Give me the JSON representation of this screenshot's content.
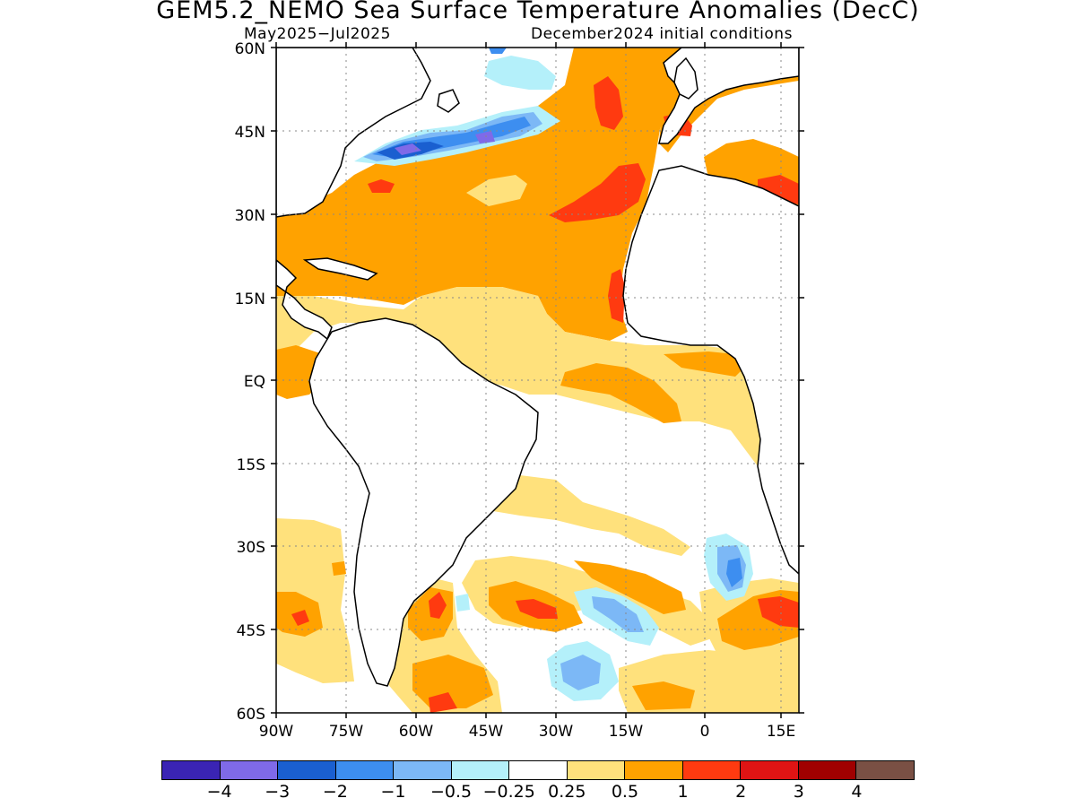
{
  "title": "GEM5.2_NEMO Sea Surface Temperature Anomalies (DecC)",
  "subtitle_left": "May2025−Jul2025",
  "subtitle_right": "December2024 initial conditions",
  "axes": {
    "lat_labels": [
      "60N",
      "45N",
      "30N",
      "15N",
      "EQ",
      "15S",
      "30S",
      "45S",
      "60S"
    ],
    "lon_labels": [
      "90W",
      "75W",
      "60W",
      "45W",
      "30W",
      "15W",
      "0",
      "15E"
    ]
  },
  "colorbar": {
    "colors": [
      "#3a24b4",
      "#7f6ae8",
      "#1a5fd0",
      "#3d8ef0",
      "#7cb8f6",
      "#b4f0fa",
      "#ffffff",
      "#ffe17c",
      "#ffa200",
      "#ff3a10",
      "#e01414",
      "#a00000",
      "#7a5044"
    ],
    "labels": [
      "−4",
      "−3",
      "−2",
      "−1",
      "−0.5",
      "−0.25",
      "0.25",
      "0.5",
      "1",
      "2",
      "3",
      "4"
    ]
  },
  "legend_units": "DecC",
  "map": {
    "region": "Atlantic Ocean 90W–18E, 60S–60N",
    "land_color": "#ffffff",
    "coastline_color": "#000000",
    "grid": "dotted"
  }
}
